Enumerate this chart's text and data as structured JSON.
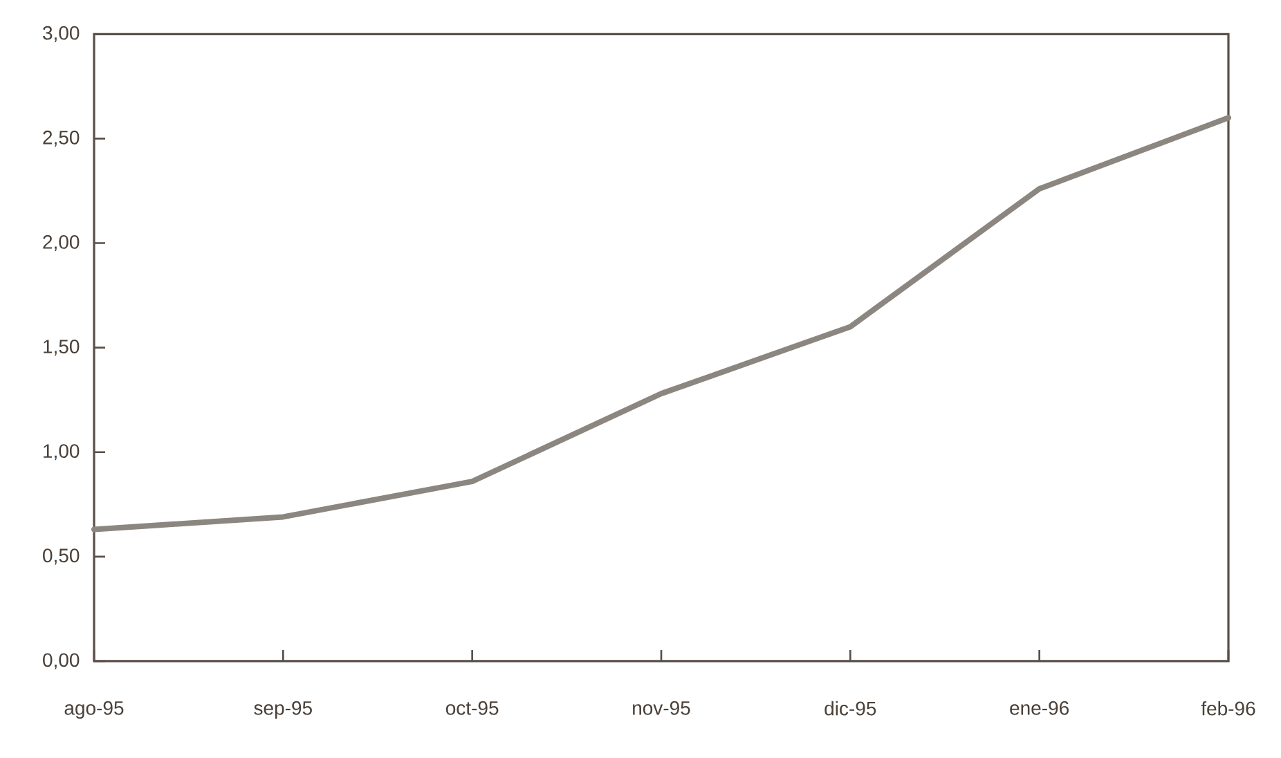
{
  "chart_data": {
    "type": "line",
    "categories": [
      "ago-95",
      "sep-95",
      "oct-95",
      "nov-95",
      "dic-95",
      "ene-96",
      "feb-96"
    ],
    "series": [
      {
        "color": "#8c8680",
        "values": [
          0.63,
          0.69,
          0.86,
          1.28,
          1.6,
          2.26,
          2.6
        ]
      }
    ],
    "ylim": [
      0,
      3
    ],
    "yticks": [
      {
        "value": 0,
        "label": "0,00"
      },
      {
        "value": 0.5,
        "label": "0,50"
      },
      {
        "value": 1,
        "label": "1,00"
      },
      {
        "value": 1.5,
        "label": "1,50"
      },
      {
        "value": 2,
        "label": "2,00"
      },
      {
        "value": 2.5,
        "label": "2,50"
      },
      {
        "value": 3,
        "label": "3,00"
      }
    ],
    "grid": false,
    "marker": "none",
    "line_style": "solid"
  }
}
